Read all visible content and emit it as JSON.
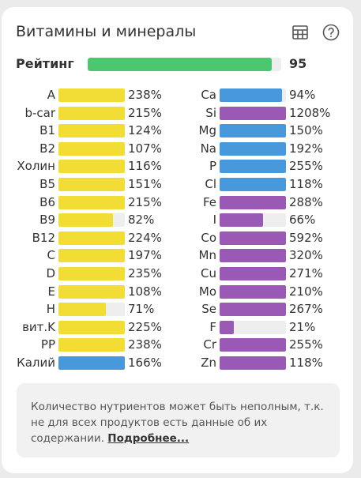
{
  "header": {
    "title": "Витамины и минералы",
    "table_icon": "table-icon",
    "help_icon": "help-circle-icon"
  },
  "rating": {
    "label": "Рейтинг",
    "value": "95",
    "fraction": 0.95,
    "color": "#4cc66f"
  },
  "colors": {
    "vitamin": "#f1dd33",
    "mineral_blue": "#4799db",
    "mineral_purple": "#9b59b6",
    "track": "#eeeeee"
  },
  "left_items": [
    {
      "label": "A",
      "value": "238%",
      "color": "vitamin"
    },
    {
      "label": "b-car",
      "value": "215%",
      "color": "vitamin"
    },
    {
      "label": "B1",
      "value": "124%",
      "color": "vitamin"
    },
    {
      "label": "B2",
      "value": "107%",
      "color": "vitamin"
    },
    {
      "label": "Холин",
      "value": "116%",
      "color": "vitamin"
    },
    {
      "label": "B5",
      "value": "151%",
      "color": "vitamin"
    },
    {
      "label": "B6",
      "value": "215%",
      "color": "vitamin"
    },
    {
      "label": "B9",
      "value": "82%",
      "color": "vitamin"
    },
    {
      "label": "B12",
      "value": "224%",
      "color": "vitamin"
    },
    {
      "label": "C",
      "value": "197%",
      "color": "vitamin"
    },
    {
      "label": "D",
      "value": "235%",
      "color": "vitamin"
    },
    {
      "label": "E",
      "value": "108%",
      "color": "vitamin"
    },
    {
      "label": "H",
      "value": "71%",
      "color": "vitamin"
    },
    {
      "label": "вит.K",
      "value": "225%",
      "color": "vitamin"
    },
    {
      "label": "PP",
      "value": "238%",
      "color": "vitamin"
    },
    {
      "label": "Калий",
      "value": "166%",
      "color": "mineral_blue"
    }
  ],
  "right_items": [
    {
      "label": "Ca",
      "value": "94%",
      "color": "mineral_blue"
    },
    {
      "label": "Si",
      "value": "1208%",
      "color": "mineral_purple"
    },
    {
      "label": "Mg",
      "value": "150%",
      "color": "mineral_blue"
    },
    {
      "label": "Na",
      "value": "192%",
      "color": "mineral_blue"
    },
    {
      "label": "P",
      "value": "255%",
      "color": "mineral_blue"
    },
    {
      "label": "Cl",
      "value": "118%",
      "color": "mineral_blue"
    },
    {
      "label": "Fe",
      "value": "288%",
      "color": "mineral_purple"
    },
    {
      "label": "I",
      "value": "66%",
      "color": "mineral_purple"
    },
    {
      "label": "Co",
      "value": "592%",
      "color": "mineral_purple"
    },
    {
      "label": "Mn",
      "value": "320%",
      "color": "mineral_purple"
    },
    {
      "label": "Cu",
      "value": "271%",
      "color": "mineral_purple"
    },
    {
      "label": "Mo",
      "value": "210%",
      "color": "mineral_purple"
    },
    {
      "label": "Se",
      "value": "267%",
      "color": "mineral_purple"
    },
    {
      "label": "F",
      "value": "21%",
      "color": "mineral_purple"
    },
    {
      "label": "Cr",
      "value": "255%",
      "color": "mineral_purple"
    },
    {
      "label": "Zn",
      "value": "118%",
      "color": "mineral_purple"
    }
  ],
  "note": {
    "text": "Количество нутриентов может быть неполным, т.к. не для всех продуктов есть данные об их содержании.",
    "link": "Подробнее..."
  }
}
